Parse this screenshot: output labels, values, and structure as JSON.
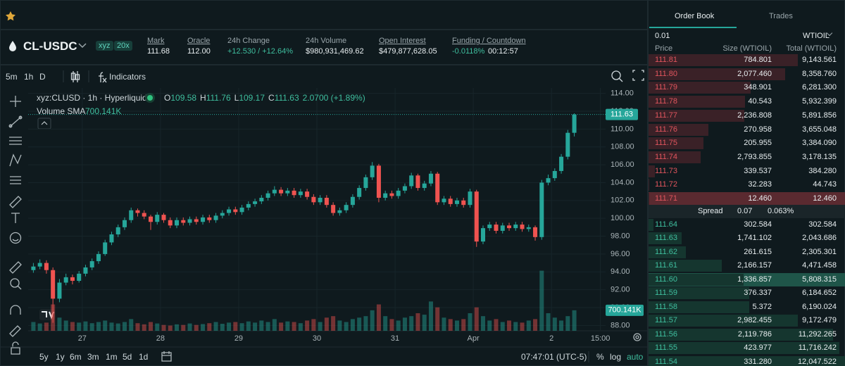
{
  "market": {
    "symbol": "CL-USDC",
    "badges": [
      "xyz",
      "20x"
    ],
    "stats": [
      {
        "label": "Mark",
        "value": "111.68"
      },
      {
        "label": "Oracle",
        "value": "112.00"
      },
      {
        "label": "24h Change",
        "value": "+12.530 / +12.64%"
      },
      {
        "label": "24h Volume",
        "value": "$980,931,469.62"
      },
      {
        "label": "Open Interest",
        "value": "$479,877,628.05"
      },
      {
        "label": "Funding / Countdown",
        "value": "-0.0118%",
        "extra": "00:12:57"
      }
    ]
  },
  "toolbar": {
    "intervals": [
      "5m",
      "1h",
      "D"
    ],
    "indicators": "Indicators"
  },
  "chart_data": {
    "type": "candlestick",
    "title": "xyz:CLUSD · 1h · Hyperliquid",
    "legend_keys": [
      "O",
      "H",
      "L",
      "C"
    ],
    "change": "2.0700 (+1.89%)",
    "volume_label": "Volume SMA",
    "volume_sma": {
      "value": 700.141,
      "label": "700.141K"
    },
    "x": [
      -15,
      -13,
      -11,
      -9,
      -7,
      -5,
      -3,
      -1,
      1,
      3,
      5,
      7,
      9,
      11,
      13,
      15,
      17,
      19,
      21,
      23,
      25,
      27,
      29,
      31,
      33,
      35,
      37,
      39,
      41,
      43,
      45,
      47,
      49,
      51,
      53,
      55,
      57,
      59,
      61,
      63,
      65,
      67,
      69,
      71,
      73,
      75,
      77,
      79,
      81,
      83,
      85,
      87,
      89,
      91,
      93,
      95,
      97,
      99,
      101,
      103,
      105,
      107,
      109,
      111,
      113,
      115,
      117,
      119,
      121,
      123,
      125,
      127,
      129,
      131,
      133,
      135,
      137,
      139,
      141,
      143,
      145,
      147,
      149,
      151
    ],
    "open": [
      94.2,
      94.6,
      95.0,
      94.2,
      91.0,
      92.8,
      93.4,
      93.0,
      93.8,
      94.5,
      95.2,
      96.0,
      97.3,
      98.2,
      99.0,
      99.8,
      100.9,
      100.6,
      100.2,
      99.6,
      100.4,
      99.8,
      99.2,
      99.8,
      99.5,
      99.9,
      99.6,
      100.1,
      99.8,
      100.3,
      100.6,
      101.0,
      100.7,
      101.2,
      101.6,
      101.9,
      102.3,
      102.8,
      103.2,
      102.8,
      103.1,
      102.6,
      103.0,
      102.4,
      101.8,
      102.3,
      101.5,
      100.6,
      100.9,
      101.5,
      102.4,
      103.4,
      104.6,
      105.9,
      102.3,
      102.8,
      102.5,
      103.1,
      103.6,
      104.8,
      103.4,
      103.9,
      105.0,
      101.8,
      102.2,
      101.6,
      102.0,
      101.5,
      103.0,
      97.4,
      98.9,
      99.3,
      98.6,
      99.2,
      98.9,
      99.3,
      98.8,
      99.0,
      97.9,
      104.0,
      104.5,
      105.3,
      106.9,
      109.58
    ],
    "high": [
      95.0,
      95.4,
      95.3,
      94.5,
      93.2,
      93.8,
      93.7,
      94.1,
      94.8,
      95.5,
      96.3,
      97.6,
      98.5,
      99.3,
      100.1,
      101.2,
      101.1,
      100.9,
      100.4,
      100.7,
      100.6,
      100.1,
      100.1,
      100.1,
      100.2,
      100.2,
      100.4,
      100.4,
      100.6,
      100.9,
      101.3,
      101.3,
      101.5,
      101.9,
      102.2,
      102.6,
      103.1,
      103.6,
      103.5,
      103.4,
      103.4,
      103.3,
      103.3,
      102.7,
      102.6,
      102.6,
      101.8,
      101.2,
      101.8,
      102.7,
      103.7,
      104.9,
      106.3,
      106.1,
      103.1,
      103.1,
      103.4,
      103.9,
      105.1,
      105.0,
      104.2,
      105.3,
      105.2,
      102.5,
      102.5,
      102.3,
      102.3,
      103.3,
      103.2,
      99.2,
      99.6,
      99.6,
      99.5,
      99.5,
      99.6,
      99.6,
      99.3,
      99.2,
      104.3,
      104.9,
      105.6,
      107.2,
      109.9,
      111.76
    ],
    "low": [
      93.9,
      94.3,
      93.8,
      88.3,
      90.6,
      92.5,
      92.6,
      92.8,
      93.5,
      94.2,
      94.9,
      95.8,
      97.0,
      97.9,
      98.7,
      99.5,
      100.2,
      99.9,
      98.7,
      99.3,
      99.5,
      98.9,
      98.9,
      99.2,
      99.2,
      99.3,
      99.3,
      99.5,
      99.5,
      100.0,
      100.3,
      100.4,
      100.4,
      100.9,
      101.3,
      101.6,
      102.0,
      102.5,
      102.5,
      102.5,
      102.3,
      102.3,
      102.1,
      101.5,
      101.5,
      101.2,
      100.3,
      100.3,
      100.6,
      101.2,
      102.1,
      103.1,
      104.3,
      101.8,
      102.0,
      102.2,
      102.2,
      102.8,
      103.3,
      103.1,
      103.1,
      103.6,
      101.5,
      101.5,
      101.3,
      101.3,
      101.2,
      101.2,
      96.8,
      97.1,
      98.6,
      98.3,
      98.3,
      98.6,
      98.6,
      98.5,
      98.5,
      97.5,
      97.6,
      103.7,
      104.2,
      105.0,
      106.6,
      109.17
    ],
    "close": [
      94.6,
      95.0,
      94.2,
      91.0,
      92.8,
      93.4,
      93.0,
      93.8,
      94.5,
      95.2,
      96.0,
      97.3,
      98.2,
      99.0,
      99.8,
      100.9,
      100.6,
      100.2,
      99.6,
      100.4,
      99.8,
      99.2,
      99.8,
      99.5,
      99.9,
      99.6,
      100.1,
      99.8,
      100.3,
      100.6,
      101.0,
      100.7,
      101.2,
      101.6,
      101.9,
      102.3,
      102.8,
      103.2,
      102.8,
      103.1,
      102.6,
      103.0,
      102.4,
      101.8,
      102.3,
      101.5,
      100.6,
      100.9,
      101.5,
      102.4,
      103.4,
      104.6,
      105.9,
      102.3,
      102.8,
      102.5,
      103.1,
      103.6,
      104.8,
      103.4,
      103.9,
      105.0,
      101.8,
      102.2,
      101.6,
      102.0,
      101.5,
      103.0,
      97.4,
      98.9,
      99.3,
      98.6,
      99.2,
      98.9,
      99.3,
      98.8,
      99.0,
      97.9,
      104.0,
      104.5,
      105.3,
      106.9,
      109.58,
      111.63
    ],
    "volume": [
      300,
      250,
      280,
      900,
      450,
      350,
      300,
      280,
      320,
      260,
      300,
      350,
      280,
      250,
      300,
      400,
      260,
      220,
      300,
      250,
      200,
      180,
      220,
      200,
      250,
      200,
      230,
      260,
      300,
      240,
      280,
      300,
      260,
      320,
      280,
      350,
      300,
      400,
      280,
      320,
      300,
      260,
      350,
      400,
      300,
      450,
      500,
      350,
      300,
      400,
      450,
      500,
      700,
      900,
      500,
      400,
      350,
      450,
      500,
      600,
      550,
      1000,
      800,
      450,
      400,
      350,
      400,
      600,
      800,
      500,
      350,
      400,
      300,
      350,
      300,
      280,
      350,
      400,
      2050,
      600,
      450,
      350,
      500,
      700
    ],
    "xlim": [
      -16.6,
      160.6
    ],
    "xticks": [
      {
        "value": 0,
        "label": "27"
      },
      {
        "value": 24,
        "label": "28"
      },
      {
        "value": 48,
        "label": "29"
      },
      {
        "value": 72,
        "label": "30"
      },
      {
        "value": 96,
        "label": "31"
      },
      {
        "value": 120,
        "label": "Apr"
      },
      {
        "value": 144,
        "label": "2"
      },
      {
        "value": 159,
        "label": "15:00"
      }
    ],
    "ylim": [
      87.4,
      114.6
    ],
    "yticks": [
      {
        "value": 88,
        "label": "88.00"
      },
      {
        "value": 90,
        "label": "90.00"
      },
      {
        "value": 92,
        "label": "92.00"
      },
      {
        "value": 94,
        "label": "94.00"
      },
      {
        "value": 96,
        "label": "96.00"
      },
      {
        "value": 98,
        "label": "98.00"
      },
      {
        "value": 100,
        "label": "100.00"
      },
      {
        "value": 102,
        "label": "102.00"
      },
      {
        "value": 104,
        "label": "104.00"
      },
      {
        "value": 106,
        "label": "106.00"
      },
      {
        "value": 108,
        "label": "108.00"
      },
      {
        "value": 110,
        "label": "110.00"
      },
      {
        "value": 112,
        "label": "112.00"
      },
      {
        "value": 114,
        "label": "114.00"
      }
    ],
    "vlim": [
      0,
      2400
    ],
    "grid": true,
    "up_color": "#26a69a",
    "down_color": "#ef5350"
  },
  "range_bar": {
    "ranges": [
      "5y",
      "1y",
      "6m",
      "3m",
      "1m",
      "5d",
      "1d"
    ],
    "clock": "07:47:01 (UTC-5)",
    "options": [
      "%",
      "log",
      "auto"
    ]
  },
  "order_book": {
    "tabs": [
      "Order Book",
      "Trades"
    ],
    "tick": "0.01",
    "unit": "WTIOIL",
    "columns": [
      "Price",
      "Size (WTIOIL)",
      "Total (WTIOIL)"
    ],
    "asks": [
      {
        "price": "111.81",
        "size": "784.801",
        "total": {
          "value": 9143.561,
          "label": "9,143.561"
        }
      },
      {
        "price": "111.80",
        "size": "2,077.460",
        "total": {
          "value": 8358.76,
          "label": "8,358.760"
        }
      },
      {
        "price": "111.79",
        "size": "348.901",
        "total": {
          "value": 6281.3,
          "label": "6,281.300"
        }
      },
      {
        "price": "111.78",
        "size": "40.543",
        "total": {
          "value": 5932.399,
          "label": "5,932.399"
        }
      },
      {
        "price": "111.77",
        "size": "2,236.808",
        "total": {
          "value": 5891.856,
          "label": "5,891.856"
        }
      },
      {
        "price": "111.76",
        "size": "270.958",
        "total": {
          "value": 3655.048,
          "label": "3,655.048"
        }
      },
      {
        "price": "111.75",
        "size": "205.955",
        "total": {
          "value": 3384.09,
          "label": "3,384.090"
        }
      },
      {
        "price": "111.74",
        "size": "2,793.855",
        "total": {
          "value": 3178.135,
          "label": "3,178.135"
        }
      },
      {
        "price": "111.73",
        "size": "339.537",
        "total": {
          "value": 384.28,
          "label": "384.280"
        }
      },
      {
        "price": "111.72",
        "size": "32.283",
        "total": {
          "value": 44.743,
          "label": "44.743"
        }
      },
      {
        "price": "111.71",
        "size": "12.460",
        "total": {
          "value": 12.46,
          "label": "12.460"
        },
        "highlight": true
      }
    ],
    "spread": {
      "label": "Spread",
      "value": "0.07",
      "percent": "0.063%"
    },
    "bids": [
      {
        "price": "111.64",
        "size": "302.584",
        "total": {
          "value": 302.584,
          "label": "302.584"
        }
      },
      {
        "price": "111.63",
        "size": "1,741.102",
        "total": {
          "value": 2043.686,
          "label": "2,043.686"
        }
      },
      {
        "price": "111.62",
        "size": "261.615",
        "total": {
          "value": 2305.301,
          "label": "2,305.301"
        }
      },
      {
        "price": "111.61",
        "size": "2,166.157",
        "total": {
          "value": 4471.458,
          "label": "4,471.458"
        }
      },
      {
        "price": "111.60",
        "size": "1,336.857",
        "total": {
          "value": 5808.315,
          "label": "5,808.315"
        },
        "highlight": true
      },
      {
        "price": "111.59",
        "size": "376.337",
        "total": {
          "value": 6184.652,
          "label": "6,184.652"
        }
      },
      {
        "price": "111.58",
        "size": "5.372",
        "total": {
          "value": 6190.024,
          "label": "6,190.024"
        }
      },
      {
        "price": "111.57",
        "size": "2,982.455",
        "total": {
          "value": 9172.479,
          "label": "9,172.479"
        }
      },
      {
        "price": "111.56",
        "size": "2,119.786",
        "total": {
          "value": 11292.265,
          "label": "11,292.265"
        }
      },
      {
        "price": "111.55",
        "size": "423.977",
        "total": {
          "value": 11716.242,
          "label": "11,716.242"
        }
      },
      {
        "price": "111.54",
        "size": "331.280",
        "total": {
          "value": 12047.522,
          "label": "12,047.522"
        }
      }
    ]
  }
}
